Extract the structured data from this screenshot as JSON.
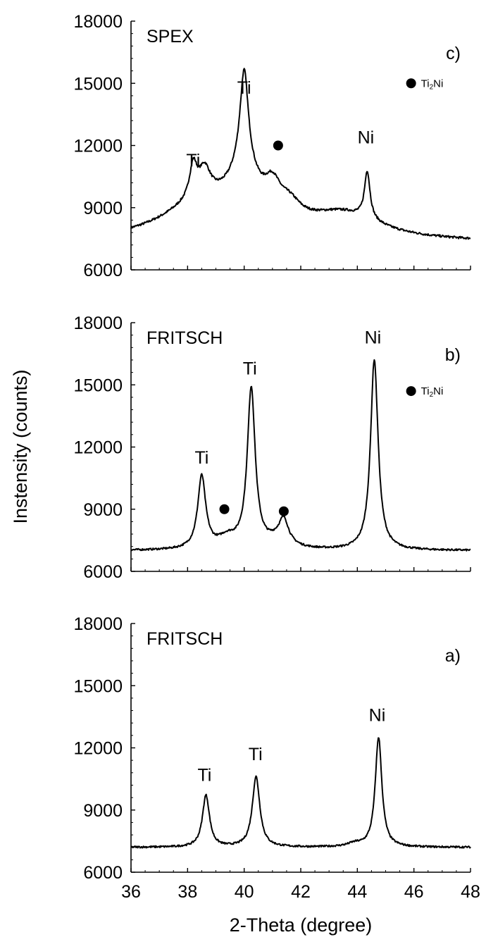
{
  "chart_data": {
    "type": "line",
    "ylabel": "Instensity (counts)",
    "xlabel": "2-Theta (degree)",
    "x_ticks": [
      "36",
      "38",
      "40",
      "42",
      "44",
      "46",
      "48"
    ],
    "xlim": [
      36,
      48
    ],
    "ylim": [
      6000,
      18000
    ],
    "y_ticks": [
      "6000",
      "9000",
      "12000",
      "15000",
      "18000"
    ],
    "grid": false,
    "panels": [
      {
        "id": "c",
        "tag": "c)",
        "mill": "SPEX",
        "legend": {
          "marker_label": "Ti",
          "marker_sub": "2",
          "marker_suffix": "Ni",
          "x": 45.9,
          "y": 15000
        },
        "baseline": 7300,
        "noise": 55,
        "series": [
          {
            "name": "",
            "peaks": [
              {
                "pos": 38.2,
                "h": 1600,
                "w": 0.16
              },
              {
                "pos": 38.6,
                "h": 1300,
                "w": 0.25
              },
              {
                "pos": 40.0,
                "h": 4700,
                "w": 0.18
              },
              {
                "pos": 40.0,
                "h": 2200,
                "w": 0.7
              },
              {
                "pos": 41.0,
                "h": 1300,
                "w": 0.35
              },
              {
                "pos": 41.6,
                "h": 800,
                "w": 0.5
              },
              {
                "pos": 44.35,
                "h": 2300,
                "w": 0.12
              },
              {
                "pos": 43.5,
                "h": 1200,
                "w": 1.6
              },
              {
                "pos": 38.5,
                "h": 1700,
                "w": 1.8
              }
            ]
          }
        ],
        "peak_labels": [
          {
            "text": "Ti",
            "x": 38.2,
            "y": 11000
          },
          {
            "text": "Ti",
            "x": 40.0,
            "y": 14500
          },
          {
            "text": "Ni",
            "x": 44.3,
            "y": 12100
          }
        ],
        "markers": [
          {
            "x": 41.2,
            "y": 12000
          }
        ]
      },
      {
        "id": "b",
        "tag": "b)",
        "mill": "FRITSCH",
        "legend": {
          "marker_label": "Ti",
          "marker_sub": "2",
          "marker_suffix": "Ni",
          "x": 45.9,
          "y": 14700
        },
        "baseline": 7000,
        "noise": 45,
        "series": [
          {
            "name": "",
            "peaks": [
              {
                "pos": 38.5,
                "h": 3500,
                "w": 0.17
              },
              {
                "pos": 40.25,
                "h": 7700,
                "w": 0.17
              },
              {
                "pos": 39.4,
                "h": 500,
                "w": 0.4
              },
              {
                "pos": 41.4,
                "h": 1100,
                "w": 0.2
              },
              {
                "pos": 41.2,
                "h": 400,
                "w": 0.5
              },
              {
                "pos": 44.6,
                "h": 9200,
                "w": 0.16
              }
            ]
          }
        ],
        "peak_labels": [
          {
            "text": "Ti",
            "x": 38.5,
            "y": 11200
          },
          {
            "text": "Ti",
            "x": 40.2,
            "y": 15500
          },
          {
            "text": "Ni",
            "x": 44.55,
            "y": 17000
          }
        ],
        "markers": [
          {
            "x": 39.3,
            "y": 9000
          },
          {
            "x": 41.4,
            "y": 8900
          }
        ]
      },
      {
        "id": "a",
        "tag": "a)",
        "mill": "FRITSCH",
        "baseline": 7200,
        "noise": 45,
        "series": [
          {
            "name": "",
            "peaks": [
              {
                "pos": 38.65,
                "h": 2500,
                "w": 0.15
              },
              {
                "pos": 40.42,
                "h": 3400,
                "w": 0.16
              },
              {
                "pos": 44.75,
                "h": 5300,
                "w": 0.14
              },
              {
                "pos": 43.9,
                "h": 150,
                "w": 0.3
              }
            ]
          }
        ],
        "peak_labels": [
          {
            "text": "Ti",
            "x": 38.6,
            "y": 10400
          },
          {
            "text": "Ti",
            "x": 40.4,
            "y": 11400
          },
          {
            "text": "Ni",
            "x": 44.7,
            "y": 13300
          }
        ],
        "markers": []
      }
    ]
  }
}
